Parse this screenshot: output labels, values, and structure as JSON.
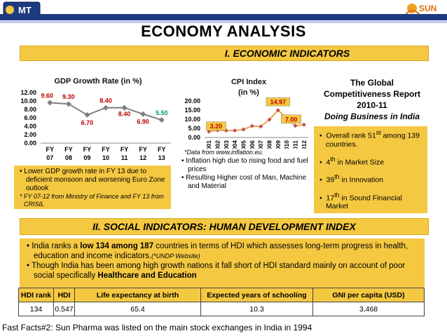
{
  "header": {
    "title": "ECONOMY ANALYSIS",
    "logo_left_text": "MT",
    "logo_right_text": "SUN",
    "colors": {
      "brand_bar": "#1e3a80",
      "accent": "#f5c842",
      "data_red": "#c00000",
      "data_green": "#00a050"
    }
  },
  "section1": {
    "title": "I. ECONOMIC INDICATORS"
  },
  "gdp_chart_title": "GDP Growth Rate (in %)",
  "cpi_chart_title_line1": "CPI Index",
  "cpi_chart_title_line2": "(in %)",
  "chart_data": [
    {
      "type": "line",
      "title": "GDP Growth Rate (in %)",
      "categories": [
        "FY 07",
        "FY 08",
        "FY 09",
        "FY 10",
        "FY 11",
        "FY 12",
        "FY 13"
      ],
      "values": [
        9.6,
        9.3,
        6.7,
        8.4,
        8.4,
        6.9,
        5.5
      ],
      "data_labels": [
        "9.60",
        "9.30",
        "6.70",
        "8.40",
        "8.40",
        "6.90",
        "5.50"
      ],
      "yticks": [
        "0.00",
        "2.00",
        "4.00",
        "6.00",
        "8.00",
        "10.00",
        "12.00"
      ],
      "ylim": [
        0,
        12
      ],
      "grid": false
    },
    {
      "type": "line",
      "title": "CPI Index (in %)",
      "categories": [
        "2001",
        "2002",
        "2003",
        "2004",
        "2005",
        "2006",
        "2007",
        "2008",
        "2009",
        "2010",
        "2011",
        "2012"
      ],
      "values": [
        3.2,
        4.0,
        3.8,
        3.8,
        4.4,
        6.3,
        6.0,
        9.8,
        14.97,
        10.5,
        6.4,
        7.0
      ],
      "labeled_points": [
        {
          "index": 0,
          "label": "3.20"
        },
        {
          "index": 8,
          "label": "14.97"
        },
        {
          "index": 11,
          "label": "7.00"
        }
      ],
      "yticks": [
        "0.00",
        "5.00",
        "10.00",
        "15.00",
        "20.00"
      ],
      "ylim": [
        0,
        20
      ],
      "grid": false
    }
  ],
  "gdp_notes": {
    "bullet": "Lower GDP growth rate in FY 13 due to deficient monsoon and worsening Euro Zone outlook",
    "note1": "* FY 07-12 from Ministry of Finance and FY 13 from CRISIL"
  },
  "cpi_notes": {
    "source": "*Data from www.inflation.eu.",
    "bullets": [
      "Inflation high due to rising food and fuel prices",
      "Resulting Higher cost of Man, Machine and Material"
    ]
  },
  "global": {
    "line1": "The Global",
    "line2": "Competitiveness Report",
    "line3": "2010-11",
    "line4": "Doing Business in India",
    "items": [
      {
        "num": "Overall rank 51",
        "sup": "st",
        "rest": " among 139 countries."
      },
      {
        "num": "4",
        "sup": "th",
        "rest": " in Market Size"
      },
      {
        "num": "39",
        "sup": "th",
        "rest": " in Innovation"
      },
      {
        "num": "17",
        "sup": "th",
        "rest": " in Sound Financial Market"
      }
    ]
  },
  "section2": {
    "title": "II. SOCIAL INDICATORS: HUMAN DEVELOPMENT INDEX"
  },
  "social": {
    "b1_pre": "India ranks a ",
    "b1_bold": "low 134 among 187",
    "b1_post": " countries in terms of HDI which assesses long-term progress in health, education and income indicators.",
    "b1_note": "(*UNDP Website)",
    "b2_pre": "Though India has been among high growth nations it fall short of HDI standard mainly on account of poor social specifically ",
    "b2_bold": "Healthcare and Education"
  },
  "hdi_table": {
    "headers": [
      "HDI rank",
      "HDI",
      "Life expectancy at birth",
      "Expected years of schooling",
      "GNI per capita (USD)"
    ],
    "row": [
      "134",
      "0.547",
      "65.4",
      "10.3",
      "3,468"
    ]
  },
  "footer": {
    "text": "Fast Facts#2: Sun Pharma was listed on the main stock exchanges in India in 1994"
  }
}
